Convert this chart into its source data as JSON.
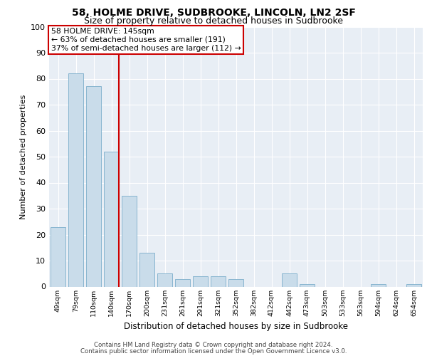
{
  "title1": "58, HOLME DRIVE, SUDBROOKE, LINCOLN, LN2 2SF",
  "title2": "Size of property relative to detached houses in Sudbrooke",
  "xlabel": "Distribution of detached houses by size in Sudbrooke",
  "ylabel": "Number of detached properties",
  "categories": [
    "49sqm",
    "79sqm",
    "110sqm",
    "140sqm",
    "170sqm",
    "200sqm",
    "231sqm",
    "261sqm",
    "291sqm",
    "321sqm",
    "352sqm",
    "382sqm",
    "412sqm",
    "442sqm",
    "473sqm",
    "503sqm",
    "533sqm",
    "563sqm",
    "594sqm",
    "624sqm",
    "654sqm"
  ],
  "values": [
    23,
    82,
    77,
    52,
    35,
    13,
    5,
    3,
    4,
    4,
    3,
    0,
    0,
    5,
    1,
    0,
    0,
    0,
    1,
    0,
    1
  ],
  "bar_color": "#c9dcea",
  "bar_edge_color": "#7baecb",
  "vline_index": 3,
  "vline_color": "#cc0000",
  "annotation_title": "58 HOLME DRIVE: 145sqm",
  "annotation_line1": "← 63% of detached houses are smaller (191)",
  "annotation_line2": "37% of semi-detached houses are larger (112) →",
  "annotation_box_color": "#ffffff",
  "annotation_box_edge_color": "#cc0000",
  "ylim": [
    0,
    100
  ],
  "yticks": [
    0,
    10,
    20,
    30,
    40,
    50,
    60,
    70,
    80,
    90,
    100
  ],
  "bg_color": "#e8eef5",
  "title1_fontsize": 10,
  "title2_fontsize": 9,
  "footer1": "Contains HM Land Registry data © Crown copyright and database right 2024.",
  "footer2": "Contains public sector information licensed under the Open Government Licence v3.0."
}
